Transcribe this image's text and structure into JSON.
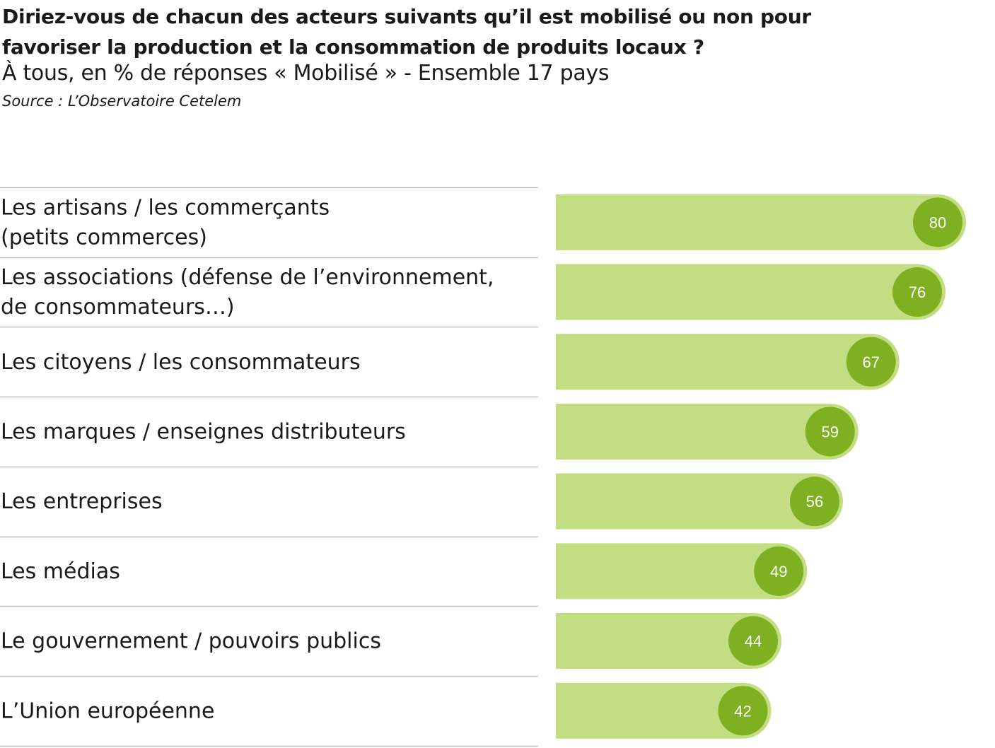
{
  "chart_data": {
    "type": "bar",
    "orientation": "horizontal",
    "title": "Diriez-vous de chacun des acteurs suivants qu’il est mobilisé ou non pour favoriser la production et la consommation de produits locaux ?",
    "subtitle": "À tous, en % de réponses « Mobilisé » - Ensemble 17 pays",
    "source": "Source : L’Observatoire Cetelem",
    "categories": [
      [
        "Les artisans / les commerçants",
        "(petits commerces)"
      ],
      [
        "Les associations (défense de l’environnement,",
        "de consommateurs…)"
      ],
      [
        "Les citoyens / les consommateurs"
      ],
      [
        "Les marques / enseignes distributeurs"
      ],
      [
        "Les entreprises"
      ],
      [
        "Les médias"
      ],
      [
        "Le gouvernement / pouvoirs publics"
      ],
      [
        "L’Union européenne"
      ]
    ],
    "values": [
      80,
      76,
      67,
      59,
      56,
      49,
      44,
      42
    ],
    "xlim": [
      0,
      80
    ],
    "grid": false,
    "legend": "none",
    "colors": {
      "bar": "#c3dd82",
      "bubble": "#7fb021",
      "bubble_ring": "#c3dd82",
      "value_text": "#ffffff",
      "separator": "#bdbdbd"
    }
  }
}
